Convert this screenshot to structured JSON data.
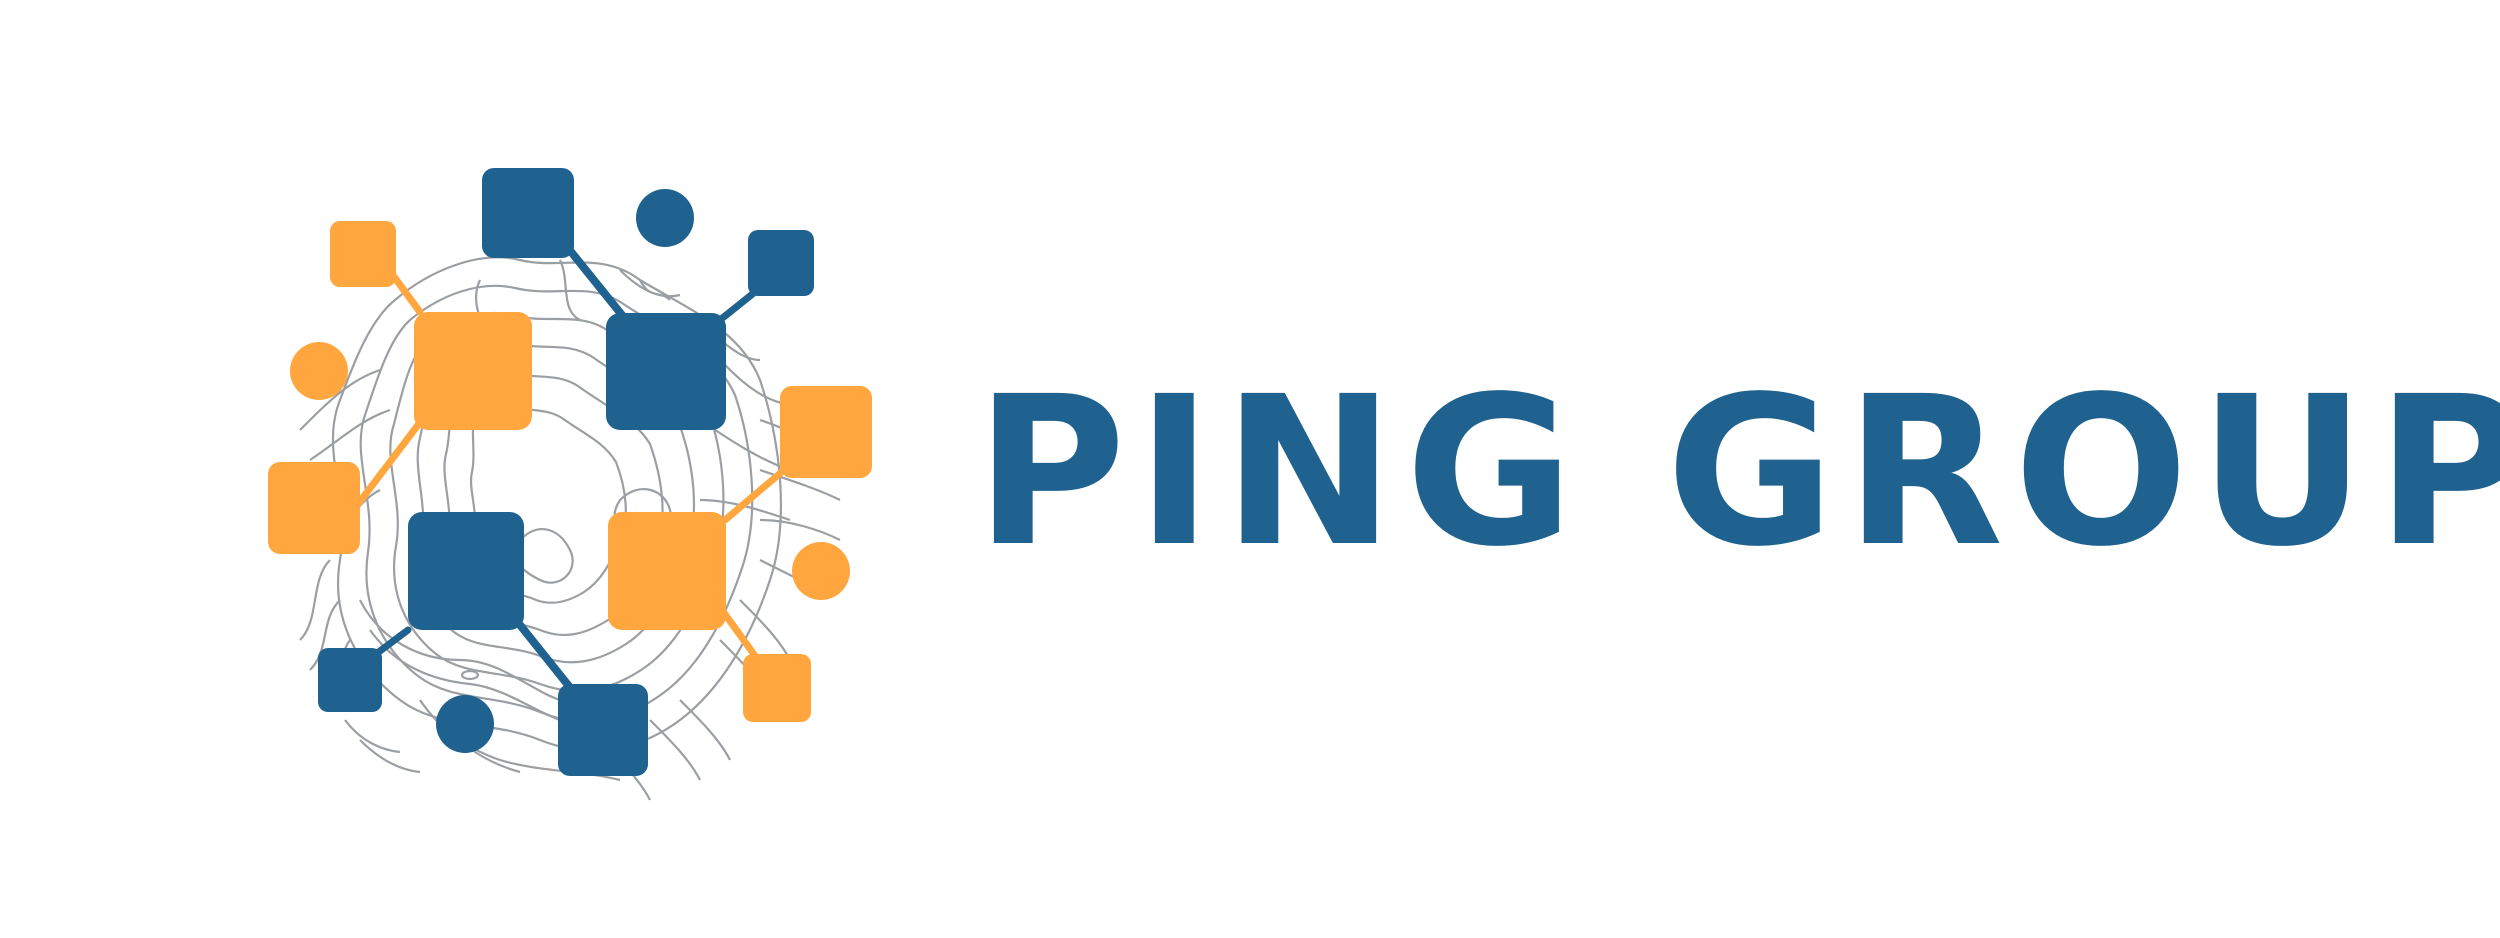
{
  "brand": {
    "name": "PING GROUP",
    "colors": {
      "primary_blue": "#20628f",
      "accent_orange": "#ffa73e",
      "contour_gray": "#8a8f94",
      "background": "#ffffff"
    }
  },
  "logo": {
    "icon": "network-nodes-contour-icon"
  }
}
